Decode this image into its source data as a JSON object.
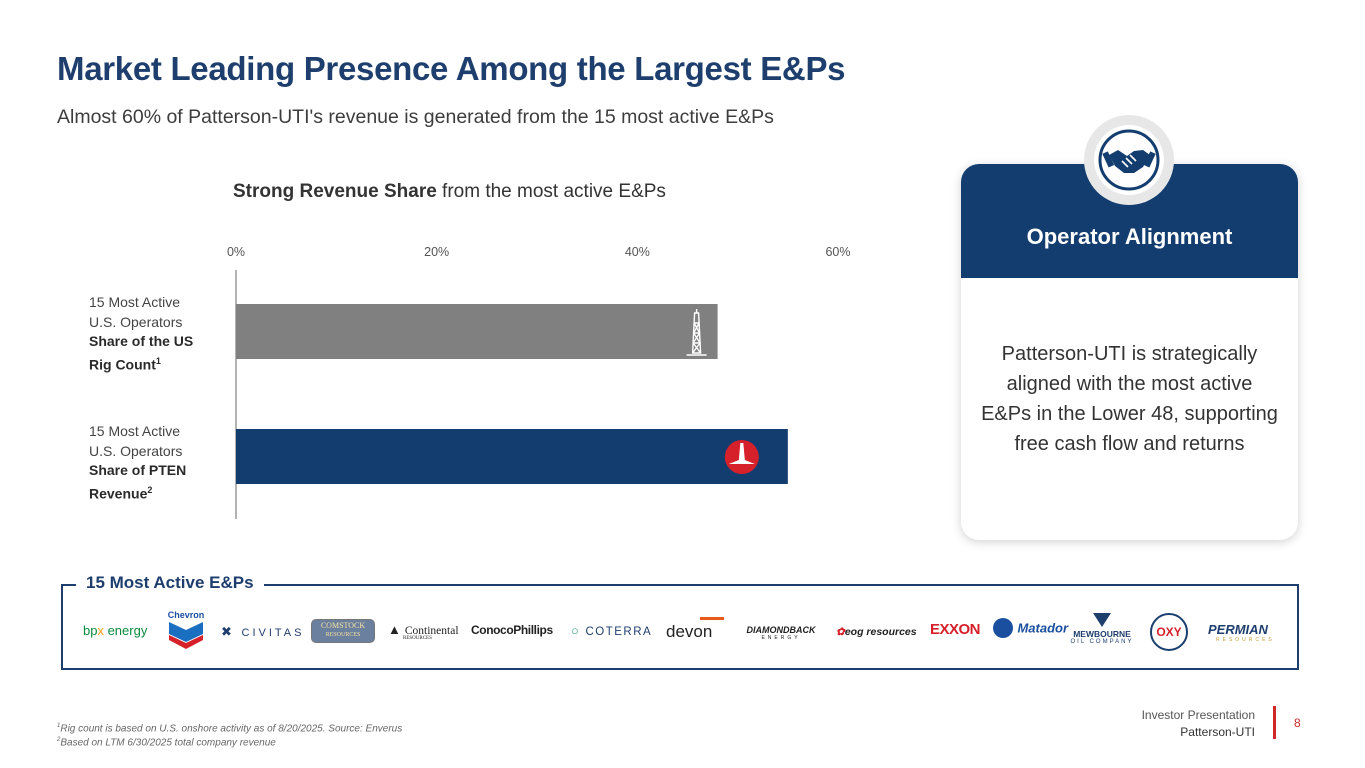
{
  "slide": {
    "title": "Market Leading Presence Among the Largest E&Ps",
    "subtitle": "Almost 60% of Patterson-UTI's revenue is generated from the 15 most active E&Ps"
  },
  "chart_title": {
    "bold": "Strong Revenue Share",
    "rest": " from the most active E&Ps"
  },
  "chart_data": {
    "type": "bar",
    "orientation": "horizontal",
    "title": "Strong Revenue Share from the most active E&Ps",
    "xlim": [
      0,
      60
    ],
    "ticks": [
      "0%",
      "20%",
      "40%",
      "60%"
    ],
    "tick_values": [
      0,
      20,
      40,
      60
    ],
    "categories": [
      {
        "line1": "15 Most Active",
        "line2": "U.S. Operators",
        "line3": "Share of the US",
        "line4": "Rig Count",
        "sup": "1"
      },
      {
        "line1": "15 Most Active",
        "line2": "U.S. Operators",
        "line3": "Share of PTEN",
        "line4": "Revenue",
        "sup": "2"
      }
    ],
    "values": [
      48,
      55
    ],
    "colors": [
      "#808080",
      "#143d6f"
    ],
    "bar_icons": [
      "rig-icon",
      "patterson-logo-icon"
    ],
    "grid": false
  },
  "card": {
    "title": "Operator Alignment",
    "body": "Patterson-UTI is strategically aligned with the most active E&Ps in the Lower 48, supporting free cash flow and returns",
    "icon": "handshake-icon"
  },
  "eps": {
    "label": "15 Most Active E&Ps",
    "logos": {
      "bpx": {
        "pre": "bp",
        "x": "x",
        "post": " energy"
      },
      "chevron": "Chevron",
      "civitas": "CIVITAS",
      "comstock": {
        "line1": "COMSTOCK",
        "line2": "RESOURCES"
      },
      "continental": {
        "name": "Continental",
        "sub": "RESOURCES"
      },
      "conocophillips": "ConocoPhillips",
      "coterra": "COTERRA",
      "devon": "devon",
      "diamondback": {
        "name": "DIAMONDBACK",
        "sub": "ENERGY"
      },
      "eog": "eog resources",
      "exxon": "EXXON",
      "matador": "Matador",
      "mewbourne": {
        "name": "MEWBOURNE",
        "sub": "OIL COMPANY"
      },
      "oxy": "OXY",
      "permian": {
        "name": "PERMIAN",
        "sub": "RESOURCES"
      }
    }
  },
  "footnotes": [
    {
      "sup": "1",
      "text": "Rig count is based on U.S. onshore activity as of 8/20/2025. Source: Enverus"
    },
    {
      "sup": "2",
      "text": "Based on LTM 6/30/2025 total company revenue"
    }
  ],
  "footer": {
    "line1": "Investor Presentation",
    "line2": "Patterson-UTI",
    "page": "8"
  },
  "colors": {
    "navy": "#143d6f",
    "title_blue": "#1e3e6e",
    "gray_bar": "#808080",
    "accent_red": "#d02828"
  }
}
